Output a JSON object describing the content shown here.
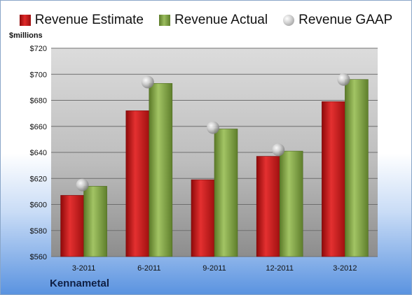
{
  "legend": {
    "estimate": "Revenue Estimate",
    "actual": "Revenue Actual",
    "gaap": "Revenue GAAP"
  },
  "company": "Kennametal",
  "colors": {
    "estimate": "#cc1f1f",
    "actual": "#8fb04f",
    "gaap": "#b0b0b0"
  },
  "chart_data": {
    "type": "bar",
    "ylabel": "$millions",
    "ylim": [
      560,
      720
    ],
    "yticks": [
      "$560",
      "$580",
      "$600",
      "$620",
      "$640",
      "$660",
      "$680",
      "$700",
      "$720"
    ],
    "ytick_values": [
      560,
      580,
      600,
      620,
      640,
      660,
      680,
      700,
      720
    ],
    "categories": [
      "3-2011",
      "6-2011",
      "9-2011",
      "12-2011",
      "3-2012"
    ],
    "series": [
      {
        "name": "Revenue Estimate",
        "values": [
          607,
          672,
          619,
          637,
          679
        ]
      },
      {
        "name": "Revenue Actual",
        "values": [
          614,
          693,
          658,
          641,
          696
        ]
      },
      {
        "name": "Revenue GAAP",
        "values": [
          615,
          694,
          659,
          642,
          696
        ]
      }
    ],
    "grid": true,
    "legend_position": "top"
  }
}
